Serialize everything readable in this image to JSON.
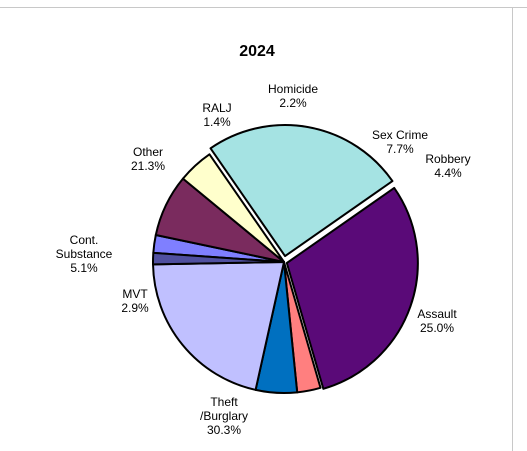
{
  "chart_data": {
    "type": "pie",
    "title": "2024",
    "slices": [
      {
        "label": [
          "Homicide",
          "2.2%"
        ],
        "value": 2.2,
        "color": "#7f7fff"
      },
      {
        "label": [
          "Sex Crime",
          "7.7%"
        ],
        "value": 7.7,
        "color": "#7a2b5e"
      },
      {
        "label": [
          "Robbery",
          "4.4%"
        ],
        "value": 4.4,
        "color": "#ffffcc"
      },
      {
        "label": [
          "Assault",
          "25.0%"
        ],
        "value": 25.0,
        "color": "#a5e3e3"
      },
      {
        "label": [
          "Theft",
          "/Burglary",
          "30.3%"
        ],
        "value": 30.3,
        "color": "#5a0a78"
      },
      {
        "label": [
          "MVT",
          "2.9%"
        ],
        "value": 2.9,
        "color": "#ff7f7f"
      },
      {
        "label": [
          "Cont.",
          "Substance",
          "5.1%"
        ],
        "value": 5.1,
        "color": "#0070c0"
      },
      {
        "label": [
          "Other",
          "21.3%"
        ],
        "value": 21.3,
        "color": "#c0c0ff"
      },
      {
        "label": [
          "RALJ",
          "1.4%"
        ],
        "value": 1.4,
        "color": "#5050a0"
      }
    ]
  }
}
